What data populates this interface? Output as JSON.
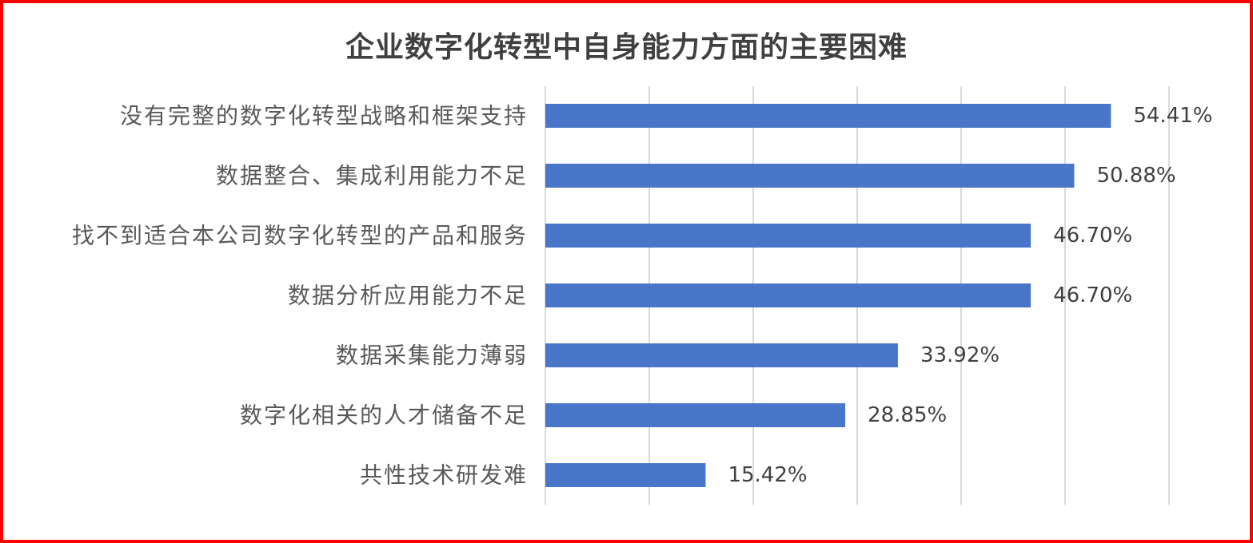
{
  "chart_data": {
    "type": "bar",
    "orientation": "horizontal",
    "title": "企业数字化转型中自身能力方面的主要困难",
    "categories": [
      "没有完整的数字化转型战略和框架支持",
      "数据整合、集成利用能力不足",
      "找不到适合本公司数字化转型的产品和服务",
      "数据分析应用能力不足",
      "数据采集能力薄弱",
      "数字化相关的人才储备不足",
      "共性技术研发难"
    ],
    "values": [
      54.41,
      50.88,
      46.7,
      46.7,
      33.92,
      28.85,
      15.42
    ],
    "value_labels": [
      "54.41%",
      "50.88%",
      "46.70%",
      "46.70%",
      "33.92%",
      "28.85%",
      "15.42%"
    ],
    "xlim": [
      0,
      60
    ],
    "grid": true,
    "gridline_step": 10,
    "bar_color": "#4a76c9",
    "frame_color": "#ff0000"
  }
}
